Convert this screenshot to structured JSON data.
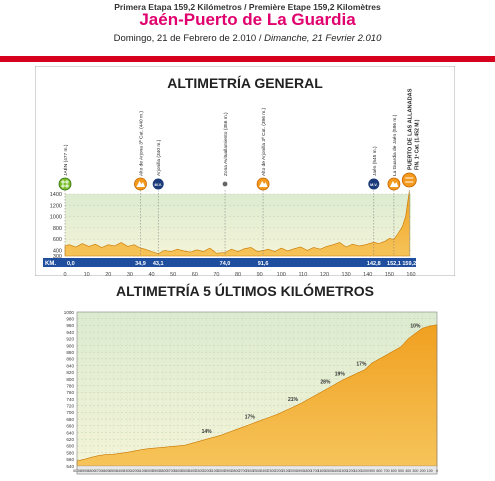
{
  "header": {
    "stage_line": "Primera Etapa 159,2 Kilómetros  /  Première Etape 159,2 Kilomètres",
    "title": "Jaén-Puerto de La Guardia",
    "date_es": "Domingo, 21 de Febrero de 2.010 / ",
    "date_fr": "Dimanche, 21 Fevrier 2.010"
  },
  "colors": {
    "title": "#e0006e",
    "red_bar": "#d6001c",
    "profile_fill": "#f0a020",
    "profile_edge": "#c97800",
    "km_bar": "#1f4e9e",
    "chart_bg_top": "#dcebd0",
    "chart_bg_bottom": "#f4f4d8",
    "climb_marker": "#f39a1e",
    "sprint_marker": "#1a3a7a",
    "start_marker": "#7bbf2a"
  },
  "chart_data": [
    {
      "type": "area",
      "title": "ALTIMETRÍA GENERAL",
      "xlabel": "KM.",
      "xlim": [
        0,
        160
      ],
      "ylim": [
        300,
        1400
      ],
      "x_ticks": [
        "0",
        "10",
        "20",
        "30",
        "40",
        "50",
        "60",
        "70",
        "80",
        "90",
        "100",
        "110",
        "120",
        "130",
        "140",
        "150",
        "160"
      ],
      "y_ticks": [
        "1400",
        "1200",
        "1000",
        "800",
        "600",
        "400",
        "300"
      ],
      "km_labels": [
        "0,0",
        "34,9",
        "43,1",
        "74,0",
        "91,6",
        "142,8",
        "152,1",
        "159,2"
      ],
      "km_label_positions": [
        0,
        34.9,
        43.1,
        74.0,
        91.6,
        142.8,
        152.1,
        159.2
      ],
      "x": [
        0,
        2,
        5,
        8,
        11,
        14,
        17,
        20,
        23,
        26,
        29,
        32,
        34.9,
        37,
        40,
        43.1,
        46,
        49,
        52,
        55,
        58,
        61,
        64,
        67,
        70,
        74,
        77,
        80,
        83,
        86,
        89,
        91.6,
        94,
        97,
        100,
        103,
        106,
        109,
        112,
        115,
        118,
        121,
        124,
        127,
        130,
        133,
        136,
        139,
        142.8,
        145,
        148,
        150,
        152.1,
        154,
        156,
        157.5,
        159.2
      ],
      "y": [
        477,
        500,
        460,
        520,
        470,
        510,
        450,
        500,
        480,
        540,
        470,
        500,
        440,
        420,
        380,
        340,
        400,
        380,
        420,
        390,
        370,
        410,
        380,
        440,
        350,
        360,
        420,
        380,
        430,
        450,
        380,
        396,
        420,
        380,
        440,
        390,
        430,
        460,
        400,
        450,
        420,
        470,
        500,
        540,
        460,
        510,
        480,
        500,
        545,
        520,
        560,
        610,
        596,
        700,
        820,
        1000,
        1452
      ],
      "points": [
        {
          "x": 0.0,
          "label": "JAÉN (477 m.)",
          "kind": "start"
        },
        {
          "x": 34.9,
          "label": "Alto de Arjona 3ª Cat. (440 m.)",
          "kind": "climb"
        },
        {
          "x": 43.1,
          "label": "Arjonilla (340 m.)",
          "kind": "sprint"
        },
        {
          "x": 74.0,
          "label": "Zona Avituallamiento (356 m.)",
          "kind": "feed"
        },
        {
          "x": 91.6,
          "label": "Alto de Arjonilla 3ª Cat. (396 m.)",
          "kind": "climb"
        },
        {
          "x": 142.8,
          "label": "Jaén (545 m.)",
          "kind": "sprint"
        },
        {
          "x": 152.1,
          "label": "La Guardia de Jaén (596 m.)",
          "kind": "climb"
        },
        {
          "x": 159.2,
          "label": "PUERTO DE LAS ALLANADAS",
          "label2": "FIN. 1ª Cat. (1.452 M.)",
          "kind": "finish"
        }
      ],
      "marker_letters": {
        "sprint": "M.V."
      }
    },
    {
      "type": "area",
      "title": "ALTIMETRÍA 5 ÚLTIMOS KILÓMETROS",
      "xlim": [
        5000,
        0
      ],
      "ylim": [
        540,
        1000
      ],
      "x_ticks": [
        "5000",
        "4900",
        "4800",
        "4700",
        "4600",
        "4500",
        "4400",
        "4300",
        "4200",
        "4100",
        "4000",
        "3900",
        "3800",
        "3700",
        "3600",
        "3500",
        "3400",
        "3300",
        "3200",
        "3100",
        "3000",
        "2900",
        "2800",
        "2700",
        "2600",
        "2500",
        "2400",
        "2300",
        "2200",
        "2100",
        "2000",
        "1900",
        "1800",
        "1700",
        "1600",
        "1500",
        "1400",
        "1300",
        "1200",
        "1100",
        "1000",
        "900",
        "800",
        "700",
        "600",
        "500",
        "400",
        "300",
        "200",
        "100",
        "0"
      ],
      "y_ticks": [
        "1000",
        "980",
        "960",
        "940",
        "920",
        "900",
        "880",
        "860",
        "840",
        "820",
        "800",
        "780",
        "760",
        "740",
        "720",
        "700",
        "680",
        "660",
        "640",
        "620",
        "600",
        "580",
        "560",
        "540"
      ],
      "x": [
        5000,
        4900,
        4800,
        4700,
        4600,
        4500,
        4400,
        4300,
        4200,
        4100,
        4000,
        3900,
        3800,
        3700,
        3600,
        3500,
        3400,
        3300,
        3200,
        3100,
        3000,
        2900,
        2800,
        2700,
        2600,
        2500,
        2400,
        2300,
        2200,
        2100,
        2000,
        1900,
        1800,
        1700,
        1600,
        1500,
        1400,
        1300,
        1200,
        1100,
        1000,
        900,
        800,
        700,
        600,
        500,
        400,
        300,
        200,
        100,
        0
      ],
      "y": [
        555,
        560,
        566,
        571,
        574,
        575,
        578,
        581,
        585,
        589,
        592,
        594,
        596,
        598,
        600,
        602,
        608,
        614,
        620,
        626,
        632,
        640,
        648,
        656,
        664,
        672,
        680,
        688,
        696,
        706,
        716,
        726,
        738,
        750,
        762,
        774,
        786,
        798,
        808,
        818,
        828,
        848,
        860,
        872,
        884,
        896,
        920,
        936,
        952,
        958,
        962
      ],
      "gradient_labels": [
        {
          "x": 3200,
          "text": "14%"
        },
        {
          "x": 2600,
          "text": "17%"
        },
        {
          "x": 2000,
          "text": "21%"
        },
        {
          "x": 1550,
          "text": "28%"
        },
        {
          "x": 1350,
          "text": "19%"
        },
        {
          "x": 1050,
          "text": "17%"
        },
        {
          "x": 300,
          "text": "10%"
        }
      ]
    }
  ]
}
